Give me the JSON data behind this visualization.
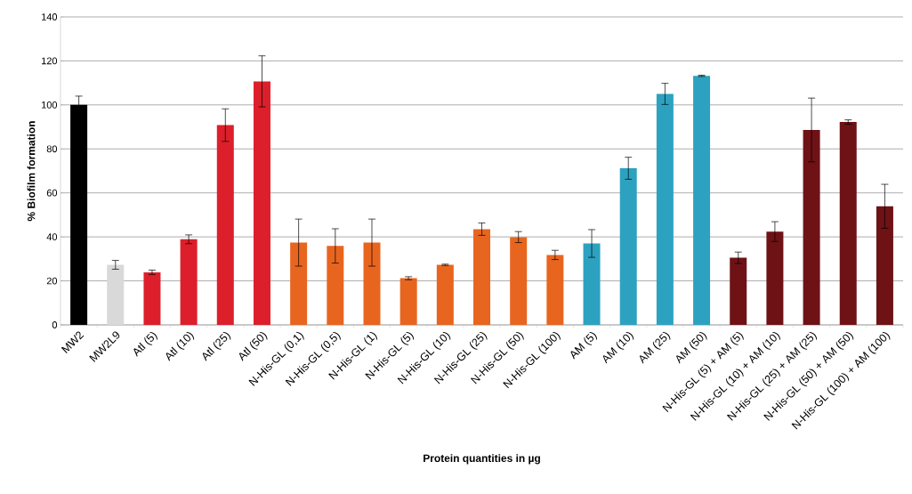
{
  "chart_data": {
    "type": "bar",
    "xlabel": "Protein quantities in µg",
    "ylabel": "% Biofilm formation",
    "categories": [
      "MW2",
      "MW2L9",
      "Atl (5)",
      "Atl (10)",
      "Atl (25)",
      "Atl (50)",
      "N-His-GL (0,1)",
      "N-His-GL (0,5)",
      "N-His-GL (1)",
      "N-His-GL (5)",
      "N-His-GL (10)",
      "N-His-GL (25)",
      "N-His-GL (50)",
      "N-His-GL (100)",
      "AM (5)",
      "AM (10)",
      "AM (25)",
      "AM (50)",
      "N-His-GL (5) + AM (5)",
      "N-His-GL (10) + AM (10)",
      "N-His-GL (25) + AM (25)",
      "N-His-GL (50) + AM (50)",
      "N-His-GL (100) + AM (100)"
    ],
    "values": [
      100,
      27.3,
      23.9,
      38.9,
      90.8,
      110.7,
      37.4,
      35.9,
      37.4,
      21.2,
      27.3,
      43.5,
      39.9,
      31.8,
      37.0,
      71.2,
      105,
      113.2,
      30.5,
      42.4,
      88.6,
      92.2,
      53.9
    ],
    "errors": [
      4,
      2,
      1,
      2,
      7.4,
      11.6,
      10.7,
      7.8,
      10.7,
      0.7,
      0.3,
      2.8,
      2.5,
      2.1,
      6.3,
      5,
      4.8,
      0.3,
      2.6,
      4.5,
      14.5,
      1,
      10
    ],
    "colors": [
      "#000000",
      "#d9d9d9",
      "#dc1f2b",
      "#dc1f2b",
      "#dc1f2b",
      "#dc1f2b",
      "#e8651f",
      "#e8651f",
      "#e8651f",
      "#e8651f",
      "#e8651f",
      "#e8651f",
      "#e8651f",
      "#e8651f",
      "#2ca2c0",
      "#2ca2c0",
      "#2ca2c0",
      "#2ca2c0",
      "#6e1216",
      "#6e1216",
      "#6e1216",
      "#6e1216",
      "#6e1216"
    ],
    "ylim": [
      0,
      140
    ],
    "yticks": [
      0,
      20,
      40,
      60,
      80,
      100,
      120,
      140
    ],
    "grid": "y"
  }
}
